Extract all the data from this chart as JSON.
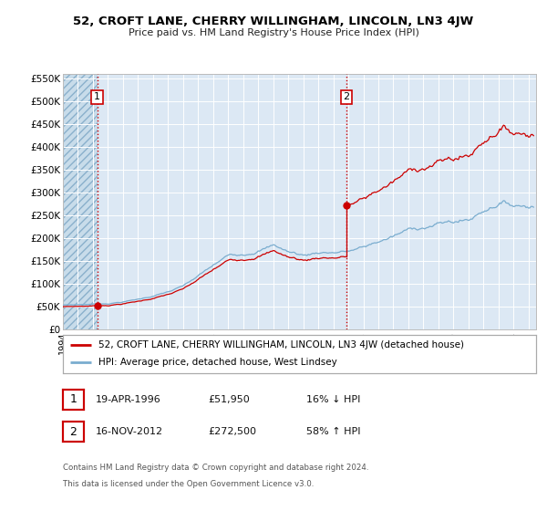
{
  "title": "52, CROFT LANE, CHERRY WILLINGHAM, LINCOLN, LN3 4JW",
  "subtitle": "Price paid vs. HM Land Registry's House Price Index (HPI)",
  "background_color": "#ffffff",
  "plot_bg_color": "#dce8f4",
  "grid_color": "#ffffff",
  "sale1_date": 1996.29,
  "sale1_price": 51950,
  "sale1_label": "1",
  "sale2_date": 2012.88,
  "sale2_price": 272500,
  "sale2_label": "2",
  "legend_line1": "52, CROFT LANE, CHERRY WILLINGHAM, LINCOLN, LN3 4JW (detached house)",
  "legend_line2": "HPI: Average price, detached house, West Lindsey",
  "footer1": "Contains HM Land Registry data © Crown copyright and database right 2024.",
  "footer2": "This data is licensed under the Open Government Licence v3.0.",
  "table_row1": [
    "1",
    "19-APR-1996",
    "£51,950",
    "16% ↓ HPI"
  ],
  "table_row2": [
    "2",
    "16-NOV-2012",
    "£272,500",
    "58% ↑ HPI"
  ],
  "red_color": "#cc0000",
  "blue_color": "#7aadcf",
  "xmin": 1994.0,
  "xmax": 2025.5,
  "ymin": 0,
  "ymax": 560000
}
